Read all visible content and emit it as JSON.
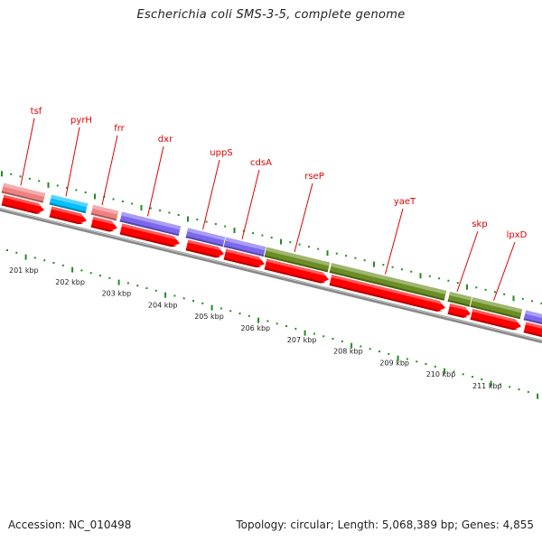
{
  "title": "Escherichia coli SMS-3-5, complete genome",
  "footer": {
    "accession": "Accession: NC_010498",
    "summary": "Topology: circular; Length: 5,068,389 bp; Genes: 4,855"
  },
  "colors": {
    "cds": "#ff0000",
    "label": "#e00000",
    "backbone": "#888888",
    "ticks": "#228b22",
    "translation": "#f08080",
    "nucleotide_metabolism": "#00bfff",
    "lipid_metabolism": "#7b68ee",
    "cell_envelope": "#6b8e23"
  },
  "genes": [
    {
      "name": "tsf",
      "category": "translation"
    },
    {
      "name": "pyrH",
      "category": "nucleotide_metabolism"
    },
    {
      "name": "frr",
      "category": "translation"
    },
    {
      "name": "dxr",
      "category": "lipid_metabolism"
    },
    {
      "name": "uppS",
      "category": "lipid_metabolism"
    },
    {
      "name": "cdsA",
      "category": "lipid_metabolism"
    },
    {
      "name": "rseP",
      "category": "cell_envelope"
    },
    {
      "name": "yaeT",
      "category": "cell_envelope"
    },
    {
      "name": "skp",
      "category": "cell_envelope"
    },
    {
      "name": "lpxD",
      "category": "cell_envelope"
    }
  ],
  "scale_labels": [
    "201 kbp",
    "202 kbp",
    "203 kbp",
    "204 kbp",
    "205 kbp",
    "206 kbp",
    "207 kbp",
    "208 kbp",
    "209 kbp",
    "210 kbp",
    "211 kbp"
  ]
}
